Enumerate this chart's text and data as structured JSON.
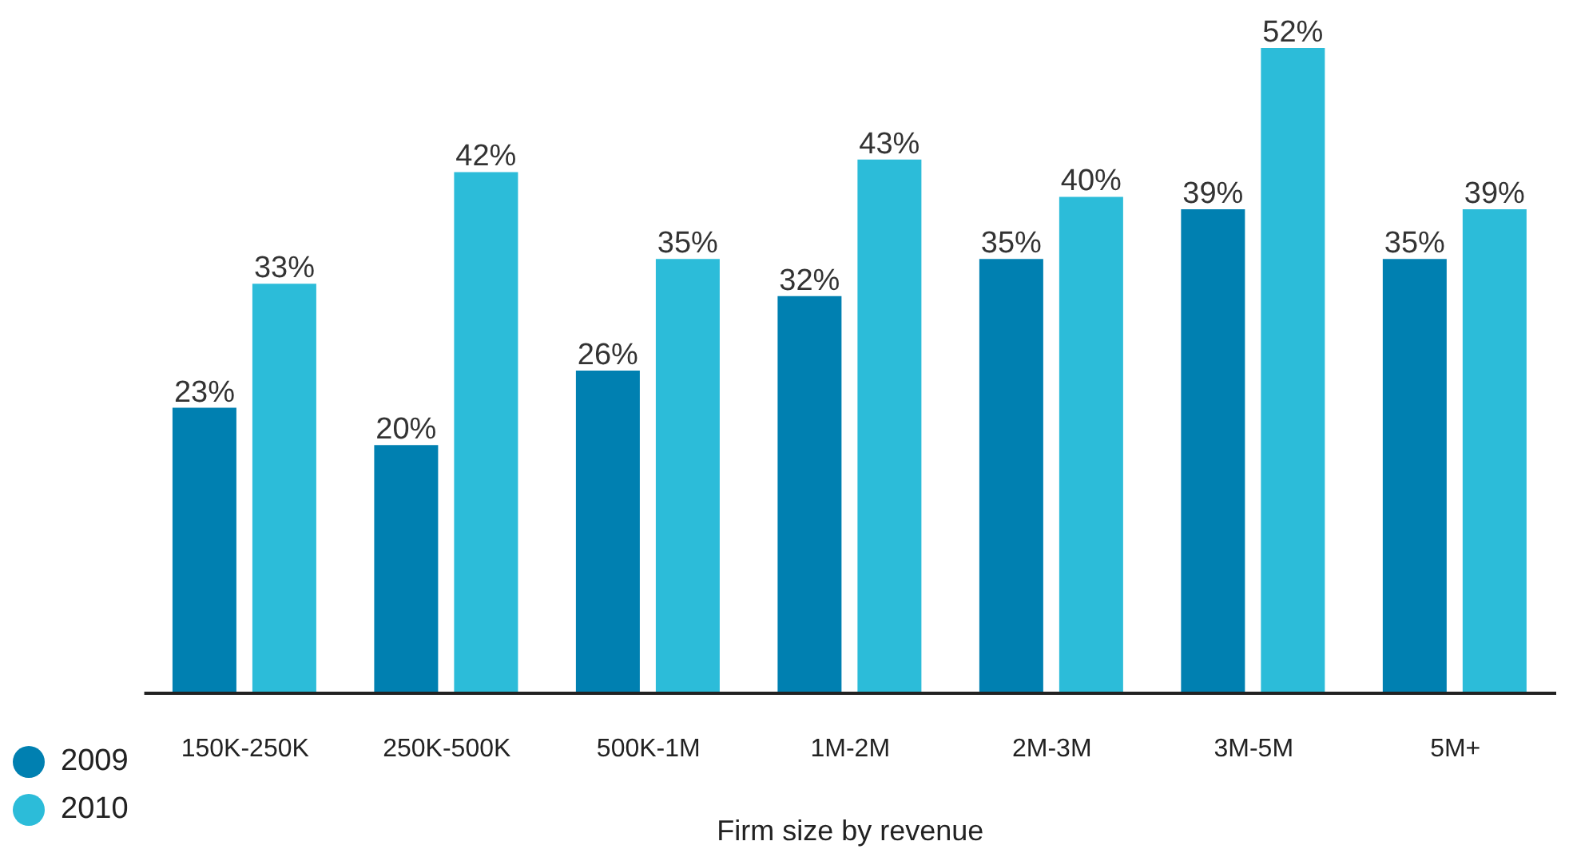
{
  "chart_data": {
    "type": "bar",
    "xlabel": "Firm size by revenue",
    "categories": [
      "150K-250K",
      "250K-500K",
      "500K-1M",
      "1M-2M",
      "2M-3M",
      "3M-5M",
      "5M+"
    ],
    "series": [
      {
        "name": "2009",
        "color": "#0080b1",
        "values": [
          23,
          20,
          26,
          32,
          35,
          39,
          35
        ],
        "value_labels": [
          "23%",
          "20%",
          "26%",
          "32%",
          "35%",
          "39%",
          "35%"
        ]
      },
      {
        "name": "2010",
        "color": "#2cbcd9",
        "values": [
          33,
          42,
          35,
          43,
          40,
          52,
          39
        ],
        "value_labels": [
          "33%",
          "42%",
          "35%",
          "43%",
          "40%",
          "52%",
          "39%"
        ]
      }
    ],
    "legend": "bottom left",
    "grid": false
  }
}
